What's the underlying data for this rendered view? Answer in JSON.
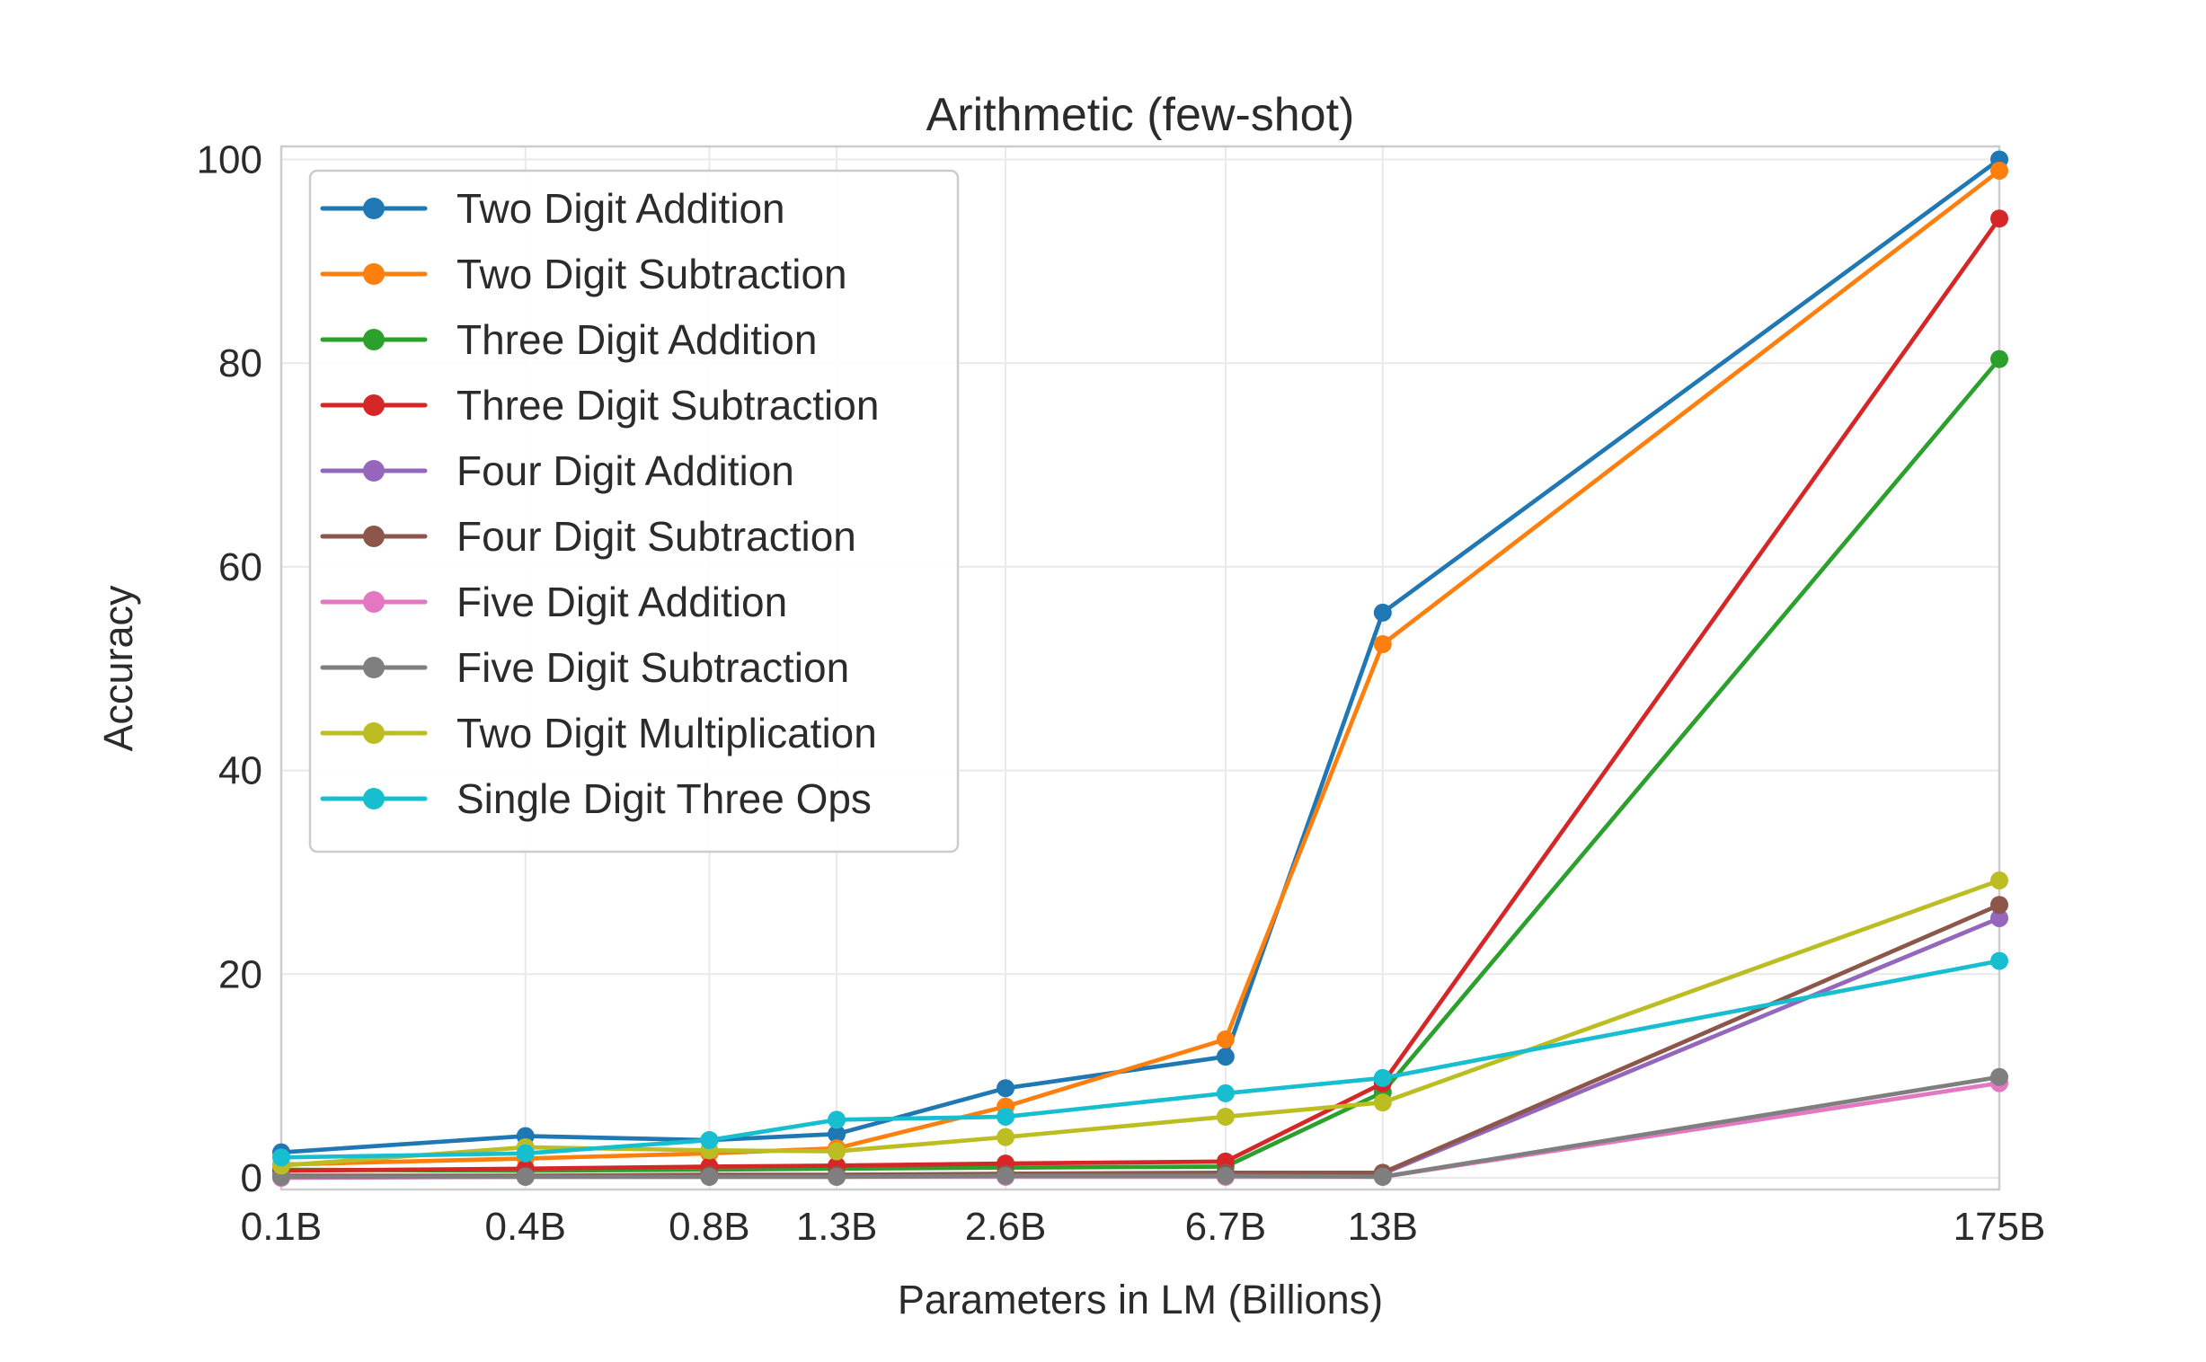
{
  "chart_data": {
    "type": "line",
    "title": "Arithmetic (few-shot)",
    "xlabel": "Parameters in LM (Billions)",
    "ylabel": "Accuracy",
    "x_scale": "log",
    "x_tick_labels": [
      "0.1B",
      "0.4B",
      "0.8B",
      "1.3B",
      "2.6B",
      "6.7B",
      "13B",
      "175B"
    ],
    "x_values": [
      0.125,
      0.35,
      0.76,
      1.3,
      2.65,
      6.7,
      13,
      175
    ],
    "y_ticks": [
      0,
      20,
      40,
      60,
      80,
      100
    ],
    "ylim": [
      0,
      100
    ],
    "grid": true,
    "legend_position": "upper left",
    "series": [
      {
        "name": "Two Digit Addition",
        "color": "#1f77b4",
        "values": [
          2.5,
          4.1,
          3.7,
          4.3,
          8.8,
          11.9,
          55.5,
          100.0
        ]
      },
      {
        "name": "Two Digit Subtraction",
        "color": "#ff7f0e",
        "values": [
          1.3,
          1.9,
          2.4,
          2.9,
          7.0,
          13.6,
          52.4,
          98.9
        ]
      },
      {
        "name": "Three Digit Addition",
        "color": "#2ca02c",
        "values": [
          0.8,
          0.7,
          0.8,
          0.9,
          1.0,
          1.1,
          8.4,
          80.4
        ]
      },
      {
        "name": "Three Digit Subtraction",
        "color": "#d62728",
        "values": [
          0.7,
          0.9,
          1.1,
          1.2,
          1.4,
          1.6,
          9.3,
          94.2
        ]
      },
      {
        "name": "Four Digit Addition",
        "color": "#9467bd",
        "values": [
          0.2,
          0.2,
          0.2,
          0.2,
          0.3,
          0.3,
          0.4,
          25.5
        ]
      },
      {
        "name": "Four Digit Subtraction",
        "color": "#8c564b",
        "values": [
          0.2,
          0.2,
          0.3,
          0.3,
          0.4,
          0.5,
          0.5,
          26.8
        ]
      },
      {
        "name": "Five Digit Addition",
        "color": "#e377c2",
        "values": [
          0.0,
          0.1,
          0.1,
          0.1,
          0.1,
          0.1,
          0.1,
          9.3
        ]
      },
      {
        "name": "Five Digit Subtraction",
        "color": "#7f7f7f",
        "values": [
          0.1,
          0.1,
          0.1,
          0.1,
          0.2,
          0.2,
          0.1,
          9.9
        ]
      },
      {
        "name": "Two Digit Multiplication",
        "color": "#bcbd22",
        "values": [
          1.2,
          3.0,
          2.7,
          2.6,
          4.0,
          6.0,
          7.4,
          29.2
        ]
      },
      {
        "name": "Single Digit Three Ops",
        "color": "#17becf",
        "values": [
          2.0,
          2.4,
          3.7,
          5.7,
          6.0,
          8.3,
          9.8,
          21.3
        ]
      }
    ],
    "style": {
      "background": "#ffffff",
      "grid_color": "#e9e9e9",
      "spine_color": "#cccccc",
      "text_color": "#2b2b2b",
      "legend_border": "#cccccc",
      "legend_fill": "#ffffff"
    }
  }
}
